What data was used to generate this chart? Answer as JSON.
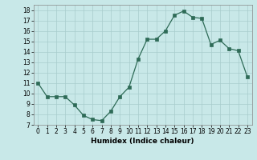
{
  "x": [
    0,
    1,
    2,
    3,
    4,
    5,
    6,
    7,
    8,
    9,
    10,
    11,
    12,
    13,
    14,
    15,
    16,
    17,
    18,
    19,
    20,
    21,
    22,
    23
  ],
  "y": [
    11,
    9.7,
    9.7,
    9.7,
    8.9,
    7.9,
    7.5,
    7.4,
    8.3,
    9.7,
    10.6,
    13.3,
    15.2,
    15.2,
    16.0,
    17.5,
    17.9,
    17.3,
    17.2,
    14.7,
    15.1,
    14.3,
    14.1,
    11.6
  ],
  "xlim": [
    -0.5,
    23.5
  ],
  "ylim": [
    7,
    18.5
  ],
  "yticks": [
    7,
    8,
    9,
    10,
    11,
    12,
    13,
    14,
    15,
    16,
    17,
    18
  ],
  "xticks": [
    0,
    1,
    2,
    3,
    4,
    5,
    6,
    7,
    8,
    9,
    10,
    11,
    12,
    13,
    14,
    15,
    16,
    17,
    18,
    19,
    20,
    21,
    22,
    23
  ],
  "xlabel": "Humidex (Indice chaleur)",
  "line_color": "#2e6b57",
  "marker_color": "#2e6b57",
  "bg_color": "#c8e8e8",
  "grid_color": "#a8cccc",
  "tick_fontsize": 5.5,
  "xlabel_fontsize": 6.5
}
